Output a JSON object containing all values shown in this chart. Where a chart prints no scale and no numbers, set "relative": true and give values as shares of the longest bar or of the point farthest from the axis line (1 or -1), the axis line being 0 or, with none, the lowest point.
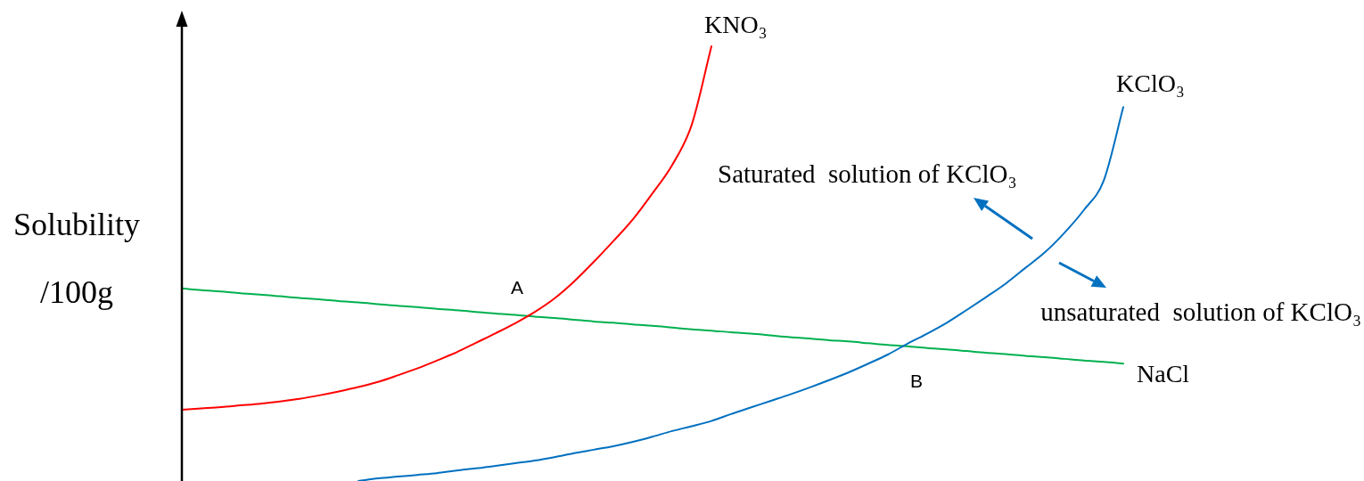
{
  "chart_data": {
    "type": "line",
    "ylabel": "Solubility\n/100g",
    "relative": true,
    "marker": "none",
    "categories": [
      null,
      null,
      null,
      null,
      null,
      null,
      null,
      null,
      null,
      null,
      null,
      null,
      null,
      null,
      null,
      null,
      null,
      null,
      null,
      null,
      null,
      null,
      null,
      null,
      null,
      null,
      null,
      null,
      null,
      null,
      null,
      null,
      null,
      null,
      null,
      null,
      null,
      null,
      null,
      null,
      null,
      null,
      null,
      null,
      null,
      null,
      null,
      null,
      null
    ],
    "series": [
      {
        "name": "KNO₃",
        "color": "#ff0000",
        "values": [
          0.164,
          0.167,
          0.17,
          0.174,
          0.178,
          0.183,
          0.189,
          0.197,
          0.206,
          0.216,
          0.228,
          0.243,
          0.259,
          0.277,
          0.296,
          0.318,
          0.34,
          0.363,
          0.389,
          0.42,
          0.459,
          0.504,
          0.552,
          0.602,
          0.662,
          0.727,
          0.82,
          1,
          null,
          null,
          null,
          null,
          null,
          null,
          null,
          null,
          null,
          null,
          null,
          null,
          null,
          null,
          null,
          null,
          null,
          null,
          null,
          null,
          null
        ]
      },
      {
        "name": "KClO₃",
        "color": "#0070c0",
        "values": [
          null,
          null,
          null,
          null,
          null,
          null,
          null,
          null,
          null,
          0,
          0.006,
          0.01,
          0.014,
          0.018,
          0.024,
          0.029,
          0.035,
          0.041,
          0.047,
          0.055,
          0.064,
          0.072,
          0.08,
          0.09,
          0.102,
          0.115,
          0.126,
          0.138,
          0.154,
          0.169,
          0.184,
          0.199,
          0.215,
          0.232,
          0.25,
          0.27,
          0.291,
          0.316,
          0.339,
          0.364,
          0.393,
          0.423,
          0.454,
          0.49,
          0.526,
          0.571,
          0.624,
          0.691,
          0.86
        ]
      },
      {
        "name": "NaCl",
        "color": "#00b050",
        "values": [
          0.443,
          0.439,
          0.436,
          0.432,
          0.429,
          0.425,
          0.421,
          0.418,
          0.414,
          0.411,
          0.407,
          0.403,
          0.4,
          0.396,
          0.393,
          0.389,
          0.385,
          0.382,
          0.378,
          0.375,
          0.371,
          0.367,
          0.364,
          0.36,
          0.357,
          0.353,
          0.349,
          0.346,
          0.342,
          0.339,
          0.335,
          0.331,
          0.328,
          0.324,
          0.321,
          0.317,
          0.313,
          0.31,
          0.306,
          0.303,
          0.299,
          0.295,
          0.292,
          0.288,
          0.285,
          0.281,
          0.277,
          0.274,
          0.27
        ]
      }
    ],
    "annotations": [
      "A",
      "B",
      "Saturated  solution of KClO₃",
      "unsaturated  solution of KClO₃"
    ]
  }
}
